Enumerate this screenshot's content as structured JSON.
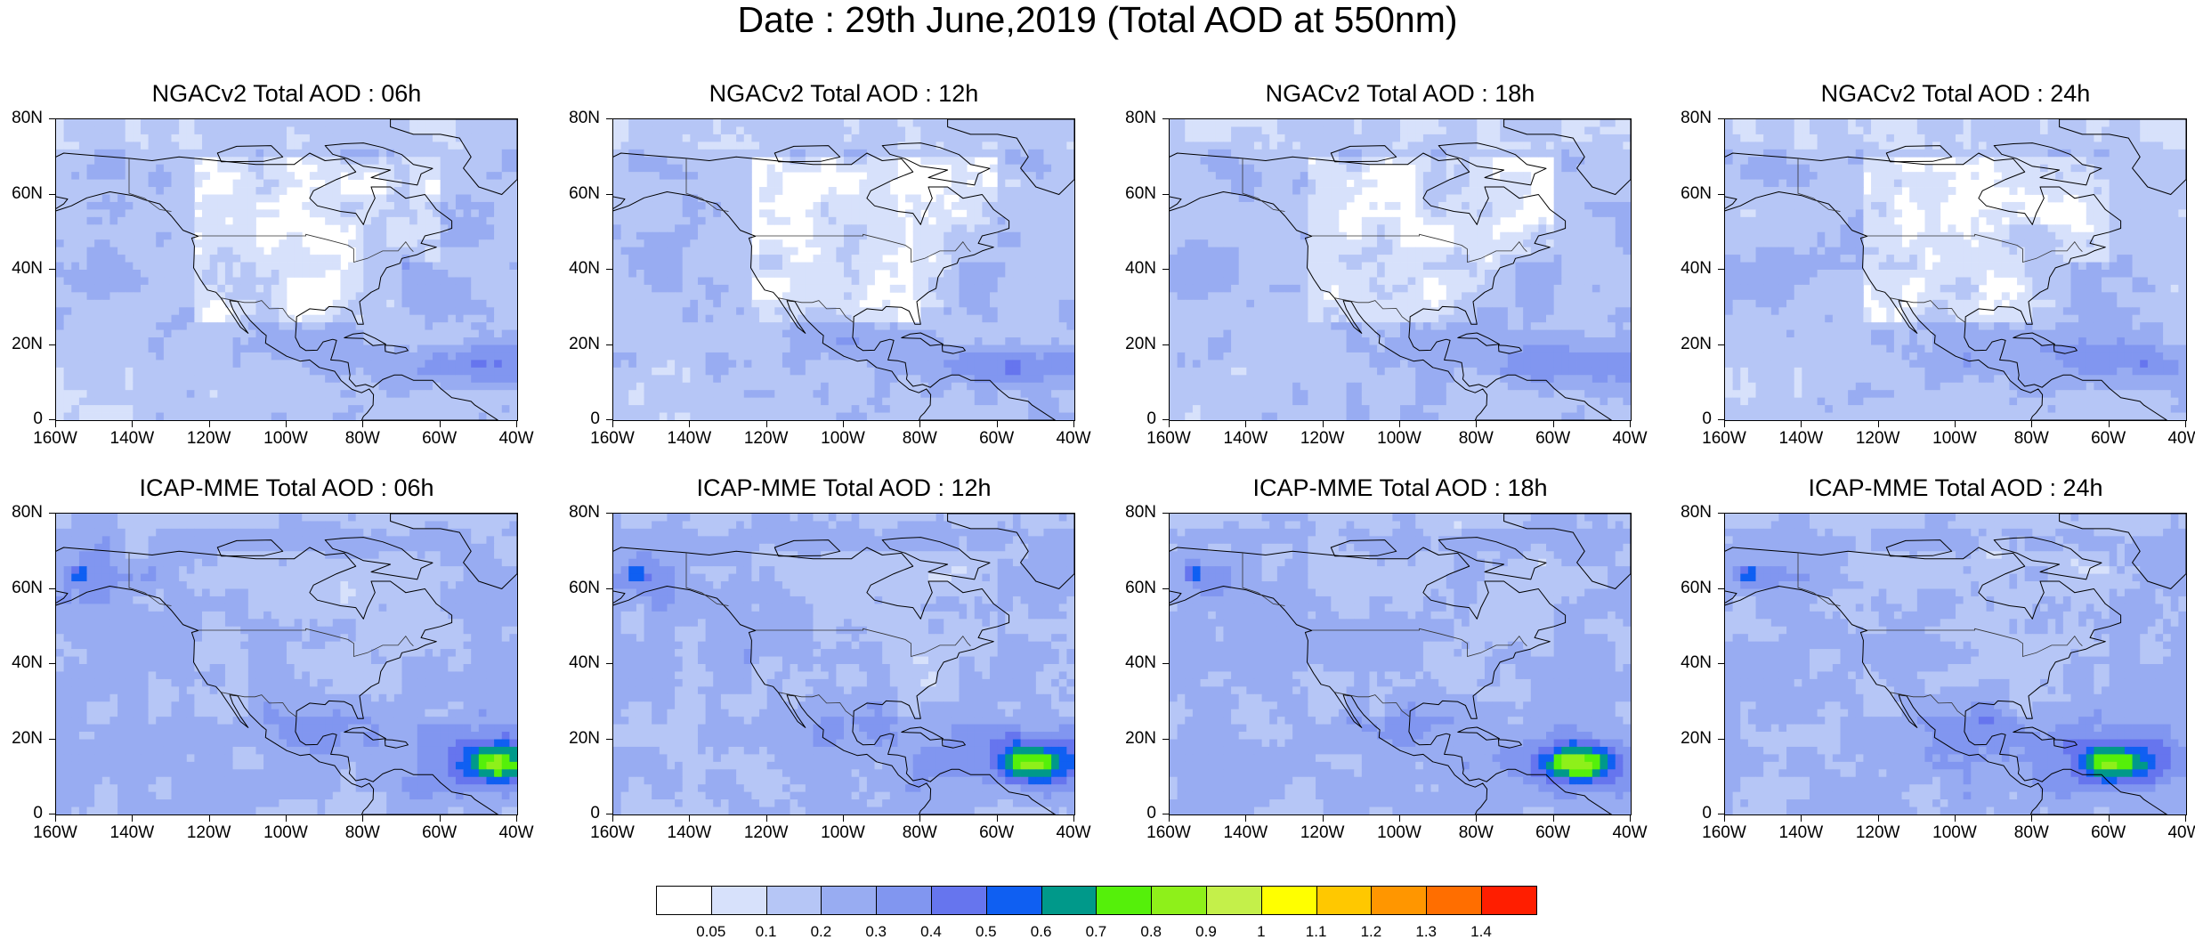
{
  "title": "Date : 29th June,2019 (Total AOD at 550nm)",
  "panels": [
    {
      "title": "NGACv2 Total AOD : 06h",
      "model": "NGACv2",
      "hour": "06h"
    },
    {
      "title": "NGACv2 Total AOD : 12h",
      "model": "NGACv2",
      "hour": "12h"
    },
    {
      "title": "NGACv2 Total AOD : 18h",
      "model": "NGACv2",
      "hour": "18h"
    },
    {
      "title": "NGACv2 Total AOD : 24h",
      "model": "NGACv2",
      "hour": "24h"
    },
    {
      "title": "ICAP-MME Total AOD : 06h",
      "model": "ICAP-MME",
      "hour": "06h"
    },
    {
      "title": "ICAP-MME Total AOD : 12h",
      "model": "ICAP-MME",
      "hour": "12h"
    },
    {
      "title": "ICAP-MME Total AOD : 18h",
      "model": "ICAP-MME",
      "hour": "18h"
    },
    {
      "title": "ICAP-MME Total AOD : 24h",
      "model": "ICAP-MME",
      "hour": "24h"
    }
  ],
  "axes": {
    "x_ticks": [
      "160W",
      "140W",
      "120W",
      "100W",
      "80W",
      "60W",
      "40W"
    ],
    "y_ticks": [
      "80N",
      "60N",
      "40N",
      "20N",
      "0"
    ],
    "lon_range": [
      -160,
      -40
    ],
    "lat_range": [
      0,
      80
    ]
  },
  "colorbar": {
    "labels": [
      "0.05",
      "0.1",
      "0.2",
      "0.3",
      "0.4",
      "0.5",
      "0.6",
      "0.7",
      "0.8",
      "0.9",
      "1",
      "1.1",
      "1.2",
      "1.3",
      "1.4"
    ],
    "colors": [
      "#ffffff",
      "#d7e1fb",
      "#b6c6f6",
      "#98acf2",
      "#8196f0",
      "#6675ee",
      "#0f5ff2",
      "#00998a",
      "#55f00a",
      "#8ef01a",
      "#c4f04a",
      "#ffff00",
      "#ffc800",
      "#ff9600",
      "#ff6e00",
      "#ff1e00"
    ]
  }
}
